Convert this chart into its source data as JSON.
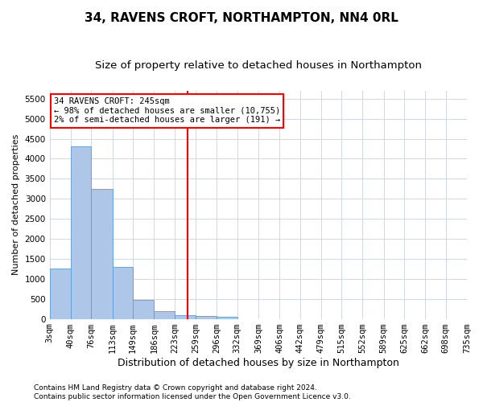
{
  "title": "34, RAVENS CROFT, NORTHAMPTON, NN4 0RL",
  "subtitle": "Size of property relative to detached houses in Northampton",
  "xlabel": "Distribution of detached houses by size in Northampton",
  "ylabel": "Number of detached properties",
  "footer_line1": "Contains HM Land Registry data © Crown copyright and database right 2024.",
  "footer_line2": "Contains public sector information licensed under the Open Government Licence v3.0.",
  "annotation_title": "34 RAVENS CROFT: 245sqm",
  "annotation_line2": "← 98% of detached houses are smaller (10,755)",
  "annotation_line3": "2% of semi-detached houses are larger (191) →",
  "property_size": 245,
  "bar_edges": [
    3,
    40,
    76,
    113,
    149,
    186,
    223,
    259,
    296,
    332,
    369,
    406,
    442,
    479,
    515,
    552,
    589,
    625,
    662,
    698,
    735
  ],
  "bar_heights": [
    1250,
    4300,
    3250,
    1300,
    475,
    200,
    100,
    75,
    50,
    0,
    0,
    0,
    0,
    0,
    0,
    0,
    0,
    0,
    0,
    0
  ],
  "bar_color": "#aec6e8",
  "bar_edge_color": "#5b9bd5",
  "vline_x": 245,
  "vline_color": "red",
  "ylim": [
    0,
    5700
  ],
  "yticks": [
    0,
    500,
    1000,
    1500,
    2000,
    2500,
    3000,
    3500,
    4000,
    4500,
    5000,
    5500
  ],
  "grid_color": "#d0d8e8",
  "annotation_box_color": "red",
  "title_fontsize": 11,
  "subtitle_fontsize": 9.5,
  "xlabel_fontsize": 9,
  "ylabel_fontsize": 8,
  "tick_fontsize": 7.5,
  "footer_fontsize": 6.5,
  "annotation_fontsize": 7.5
}
